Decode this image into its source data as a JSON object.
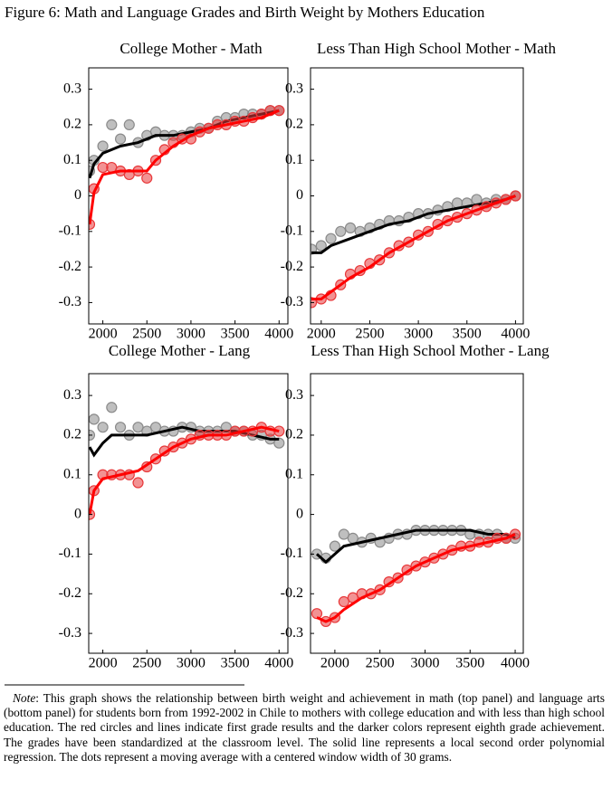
{
  "title": "Figure 6: Math and Language Grades and Birth Weight by Mothers Education",
  "chart_data": [
    {
      "type": "scatter",
      "title": "College Mother - Math",
      "xlim": [
        1840,
        4100
      ],
      "xticks": [
        2000,
        2500,
        3000,
        3500,
        4000
      ],
      "ylim": [
        -0.36,
        0.36
      ],
      "yticks": [
        0.3,
        0.2,
        0.1,
        0,
        -0.1,
        -0.2,
        -0.3
      ],
      "series": [
        {
          "mode": "markers",
          "color": "#8a8a8a",
          "x": [
            1850,
            1900,
            2000,
            2100,
            2200,
            2300,
            2400,
            2500,
            2600,
            2700,
            2800,
            2900,
            3000,
            3100,
            3200,
            3300,
            3400,
            3500,
            3600,
            3700,
            3800,
            3900,
            4000
          ],
          "values": [
            0.07,
            0.1,
            0.14,
            0.2,
            0.16,
            0.2,
            0.15,
            0.17,
            0.18,
            0.17,
            0.17,
            0.17,
            0.18,
            0.19,
            0.19,
            0.21,
            0.22,
            0.22,
            0.23,
            0.23,
            0.23,
            0.24,
            0.24
          ]
        },
        {
          "mode": "line",
          "color": "#000000",
          "x": [
            1850,
            1900,
            2000,
            2200,
            2400,
            2600,
            2800,
            3000,
            3200,
            3400,
            3600,
            3800,
            4000
          ],
          "values": [
            0.05,
            0.09,
            0.12,
            0.14,
            0.15,
            0.17,
            0.17,
            0.18,
            0.19,
            0.21,
            0.22,
            0.23,
            0.24
          ]
        },
        {
          "mode": "markers",
          "color": "#e8383a",
          "x": [
            1850,
            1900,
            2000,
            2100,
            2200,
            2300,
            2400,
            2500,
            2600,
            2700,
            2800,
            2900,
            3000,
            3100,
            3200,
            3300,
            3400,
            3500,
            3600,
            3700,
            3800,
            3900,
            4000
          ],
          "values": [
            -0.08,
            0.02,
            0.08,
            0.08,
            0.07,
            0.06,
            0.07,
            0.05,
            0.1,
            0.13,
            0.15,
            0.16,
            0.16,
            0.18,
            0.19,
            0.2,
            0.2,
            0.21,
            0.21,
            0.22,
            0.23,
            0.24,
            0.24
          ]
        },
        {
          "mode": "line",
          "color": "#ff0000",
          "x": [
            1850,
            1900,
            2000,
            2200,
            2400,
            2500,
            2600,
            2800,
            3000,
            3200,
            3400,
            3600,
            3800,
            4000
          ],
          "values": [
            -0.08,
            0.01,
            0.06,
            0.07,
            0.07,
            0.07,
            0.1,
            0.14,
            0.17,
            0.19,
            0.2,
            0.21,
            0.22,
            0.24
          ]
        }
      ]
    },
    {
      "type": "scatter",
      "title": "Less Than High School Mother - Math",
      "xlim": [
        1890,
        4080
      ],
      "xticks": [
        2000,
        2500,
        3000,
        3500,
        4000
      ],
      "ylim": [
        -0.36,
        0.36
      ],
      "yticks": [
        0.3,
        0.2,
        0.1,
        0,
        -0.1,
        -0.2,
        -0.3
      ],
      "series": [
        {
          "mode": "markers",
          "color": "#8a8a8a",
          "x": [
            1900,
            2000,
            2100,
            2200,
            2300,
            2400,
            2500,
            2600,
            2700,
            2800,
            2900,
            3000,
            3100,
            3200,
            3300,
            3400,
            3500,
            3600,
            3700,
            3800,
            3900,
            4000
          ],
          "values": [
            -0.15,
            -0.14,
            -0.12,
            -0.1,
            -0.09,
            -0.1,
            -0.09,
            -0.08,
            -0.07,
            -0.07,
            -0.06,
            -0.05,
            -0.05,
            -0.04,
            -0.03,
            -0.02,
            -0.02,
            -0.01,
            -0.02,
            -0.01,
            -0.01,
            0
          ]
        },
        {
          "mode": "line",
          "color": "#000000",
          "x": [
            1900,
            2000,
            2100,
            2300,
            2500,
            2700,
            2900,
            3100,
            3300,
            3500,
            3700,
            3900,
            4000
          ],
          "values": [
            -0.16,
            -0.16,
            -0.14,
            -0.12,
            -0.1,
            -0.08,
            -0.07,
            -0.05,
            -0.04,
            -0.03,
            -0.02,
            -0.01,
            0
          ]
        },
        {
          "mode": "markers",
          "color": "#e8383a",
          "x": [
            1900,
            2000,
            2100,
            2200,
            2300,
            2400,
            2500,
            2600,
            2700,
            2800,
            2900,
            3000,
            3100,
            3200,
            3300,
            3400,
            3500,
            3600,
            3700,
            3800,
            3900,
            4000
          ],
          "values": [
            -0.3,
            -0.29,
            -0.28,
            -0.25,
            -0.22,
            -0.21,
            -0.19,
            -0.18,
            -0.16,
            -0.14,
            -0.13,
            -0.11,
            -0.1,
            -0.08,
            -0.07,
            -0.06,
            -0.05,
            -0.04,
            -0.03,
            -0.02,
            -0.01,
            0
          ]
        },
        {
          "mode": "line",
          "color": "#ff0000",
          "x": [
            1900,
            2000,
            2100,
            2300,
            2500,
            2700,
            2900,
            3100,
            3300,
            3500,
            3700,
            3900,
            4000
          ],
          "values": [
            -0.29,
            -0.29,
            -0.27,
            -0.23,
            -0.2,
            -0.16,
            -0.13,
            -0.1,
            -0.07,
            -0.05,
            -0.03,
            -0.01,
            0
          ]
        }
      ]
    },
    {
      "type": "scatter",
      "title": "College Mother - Lang",
      "xlim": [
        1840,
        4100
      ],
      "xticks": [
        2000,
        2500,
        3000,
        3500,
        4000
      ],
      "ylim": [
        -0.35,
        0.355
      ],
      "yticks": [
        0.3,
        0.2,
        0.1,
        0,
        -0.1,
        -0.2,
        -0.3
      ],
      "series": [
        {
          "mode": "markers",
          "color": "#8a8a8a",
          "x": [
            1850,
            1900,
            2000,
            2100,
            2200,
            2300,
            2400,
            2500,
            2600,
            2700,
            2800,
            2900,
            3000,
            3100,
            3200,
            3300,
            3400,
            3500,
            3600,
            3700,
            3800,
            3900,
            4000
          ],
          "values": [
            0.2,
            0.24,
            0.22,
            0.27,
            0.22,
            0.2,
            0.22,
            0.21,
            0.22,
            0.21,
            0.21,
            0.22,
            0.22,
            0.21,
            0.21,
            0.21,
            0.22,
            0.21,
            0.21,
            0.2,
            0.2,
            0.19,
            0.18
          ]
        },
        {
          "mode": "line",
          "color": "#000000",
          "x": [
            1850,
            1900,
            2000,
            2100,
            2300,
            2500,
            2700,
            2900,
            3100,
            3300,
            3500,
            3700,
            3900,
            4000
          ],
          "values": [
            0.17,
            0.15,
            0.18,
            0.2,
            0.2,
            0.2,
            0.21,
            0.22,
            0.21,
            0.21,
            0.21,
            0.2,
            0.19,
            0.19
          ]
        },
        {
          "mode": "markers",
          "color": "#e8383a",
          "x": [
            1850,
            1900,
            2000,
            2100,
            2200,
            2300,
            2400,
            2500,
            2600,
            2700,
            2800,
            2900,
            3000,
            3100,
            3200,
            3300,
            3400,
            3500,
            3600,
            3700,
            3800,
            3900,
            4000
          ],
          "values": [
            0,
            0.06,
            0.1,
            0.1,
            0.1,
            0.1,
            0.08,
            0.12,
            0.14,
            0.16,
            0.17,
            0.18,
            0.19,
            0.2,
            0.2,
            0.2,
            0.2,
            0.21,
            0.21,
            0.21,
            0.22,
            0.21,
            0.21
          ]
        },
        {
          "mode": "line",
          "color": "#ff0000",
          "x": [
            1850,
            1900,
            2000,
            2200,
            2400,
            2600,
            2800,
            3000,
            3200,
            3400,
            3600,
            3800,
            4000
          ],
          "values": [
            0,
            0.06,
            0.09,
            0.1,
            0.11,
            0.14,
            0.17,
            0.19,
            0.2,
            0.2,
            0.21,
            0.22,
            0.21
          ]
        }
      ]
    },
    {
      "type": "scatter",
      "title": "Less Than High School Mother - Lang",
      "xlim": [
        1730,
        4090
      ],
      "xticks": [
        2000,
        2500,
        3000,
        3500,
        4000
      ],
      "ylim": [
        -0.35,
        0.355
      ],
      "yticks": [
        0.3,
        0.2,
        0.1,
        0,
        -0.1,
        -0.2,
        -0.3
      ],
      "series": [
        {
          "mode": "markers",
          "color": "#8a8a8a",
          "x": [
            1800,
            1900,
            2000,
            2100,
            2200,
            2300,
            2400,
            2500,
            2600,
            2700,
            2800,
            2900,
            3000,
            3100,
            3200,
            3300,
            3400,
            3500,
            3600,
            3700,
            3800,
            3900,
            4000
          ],
          "values": [
            -0.1,
            -0.11,
            -0.08,
            -0.05,
            -0.06,
            -0.07,
            -0.06,
            -0.07,
            -0.06,
            -0.05,
            -0.05,
            -0.04,
            -0.04,
            -0.04,
            -0.04,
            -0.04,
            -0.04,
            -0.05,
            -0.05,
            -0.05,
            -0.05,
            -0.06,
            -0.06
          ]
        },
        {
          "mode": "line",
          "color": "#000000",
          "x": [
            1800,
            1900,
            2000,
            2100,
            2300,
            2500,
            2700,
            2900,
            3100,
            3300,
            3500,
            3700,
            3900,
            4000
          ],
          "values": [
            -0.1,
            -0.12,
            -0.1,
            -0.08,
            -0.07,
            -0.06,
            -0.05,
            -0.04,
            -0.04,
            -0.04,
            -0.04,
            -0.05,
            -0.05,
            -0.06
          ]
        },
        {
          "mode": "markers",
          "color": "#e8383a",
          "x": [
            1800,
            1900,
            2000,
            2100,
            2200,
            2300,
            2400,
            2500,
            2600,
            2700,
            2800,
            2900,
            3000,
            3100,
            3200,
            3300,
            3400,
            3500,
            3600,
            3700,
            3800,
            3900,
            4000
          ],
          "values": [
            -0.25,
            -0.27,
            -0.26,
            -0.22,
            -0.21,
            -0.2,
            -0.2,
            -0.19,
            -0.17,
            -0.16,
            -0.14,
            -0.13,
            -0.12,
            -0.11,
            -0.1,
            -0.09,
            -0.08,
            -0.08,
            -0.07,
            -0.07,
            -0.06,
            -0.06,
            -0.05
          ]
        },
        {
          "mode": "line",
          "color": "#ff0000",
          "x": [
            1800,
            1900,
            2000,
            2100,
            2300,
            2500,
            2700,
            2900,
            3100,
            3300,
            3500,
            3700,
            3900,
            4000
          ],
          "values": [
            -0.26,
            -0.27,
            -0.26,
            -0.24,
            -0.21,
            -0.19,
            -0.16,
            -0.13,
            -0.11,
            -0.09,
            -0.08,
            -0.07,
            -0.06,
            -0.05
          ]
        }
      ]
    }
  ],
  "note_label": "Note",
  "note": ":  This graph shows the relationship between birth weight and achievement in math (top panel) and language arts (bottom panel) for students born from 1992-2002 in Chile to mothers with college education and with less than high school education. The red circles and lines indicate first grade results and the darker colors represent eighth grade achievement.  The grades have been standardized at the classroom level.  The solid line represents a local second order polynomial regression. The dots represent a moving average with a centered window width of 30 grams."
}
